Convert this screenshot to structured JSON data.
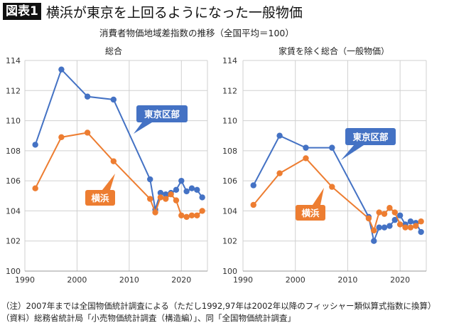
{
  "header": {
    "tag": "図表1",
    "title": "横浜が東京を上回るようになった一般物価",
    "subtitle": "消費者物価地域差指数の推移（全国平均＝100）"
  },
  "notes": [
    "（注）2007年までは全国物価統計調査による（ただし1992,97年は2002年以降のフィッシャー類似算式指数に換算）",
    "（資料）総務省統計局「小売物価統計調査（構造編）」、同「全国物価統計調査」"
  ],
  "colors": {
    "tokyo": "#4472C4",
    "yokohama": "#ED7D31",
    "grid": "#d0d0d0"
  },
  "chart_data": [
    {
      "type": "line",
      "title": "総合",
      "xlim": [
        1990,
        2025
      ],
      "ylim": [
        100,
        114
      ],
      "xticks": [
        "1990",
        "2000",
        "2010",
        "2020"
      ],
      "yticks": [
        "100",
        "102",
        "104",
        "106",
        "108",
        "110",
        "112",
        "114"
      ],
      "grid": true,
      "x": [
        1992,
        1997,
        2002,
        2007,
        2014,
        2015,
        2016,
        2017,
        2018,
        2019,
        2020,
        2021,
        2022,
        2023,
        2024
      ],
      "series": [
        {
          "name": "東京区部",
          "color": "#4472C4",
          "values": [
            108.4,
            113.4,
            111.6,
            111.4,
            106.1,
            104.1,
            105.2,
            105.1,
            105.2,
            105.4,
            106.0,
            105.3,
            105.5,
            105.4,
            104.9
          ]
        },
        {
          "name": "横浜",
          "color": "#ED7D31",
          "values": [
            105.5,
            108.9,
            109.2,
            107.3,
            104.8,
            103.9,
            104.9,
            104.8,
            105.1,
            104.7,
            103.7,
            103.6,
            103.7,
            103.7,
            104.0
          ]
        }
      ]
    },
    {
      "type": "line",
      "title": "家賃を除く総合（一般物価）",
      "xlim": [
        1990,
        2025
      ],
      "ylim": [
        100,
        114
      ],
      "xticks": [
        "1990",
        "2000",
        "2010",
        "2020"
      ],
      "yticks": [
        "100",
        "102",
        "104",
        "106",
        "108",
        "110",
        "112",
        "114"
      ],
      "grid": true,
      "x": [
        1992,
        1997,
        2002,
        2007,
        2014,
        2015,
        2016,
        2017,
        2018,
        2019,
        2020,
        2021,
        2022,
        2023,
        2024
      ],
      "series": [
        {
          "name": "東京区部",
          "color": "#4472C4",
          "values": [
            105.7,
            109.0,
            108.2,
            108.2,
            103.6,
            102.0,
            102.9,
            102.9,
            103.0,
            103.4,
            103.7,
            103.1,
            103.3,
            103.2,
            102.6
          ]
        },
        {
          "name": "横浜",
          "color": "#ED7D31",
          "values": [
            104.4,
            106.5,
            107.5,
            105.6,
            103.5,
            102.7,
            103.9,
            103.8,
            104.2,
            103.9,
            103.1,
            102.9,
            102.9,
            103.0,
            103.3
          ]
        }
      ]
    }
  ]
}
